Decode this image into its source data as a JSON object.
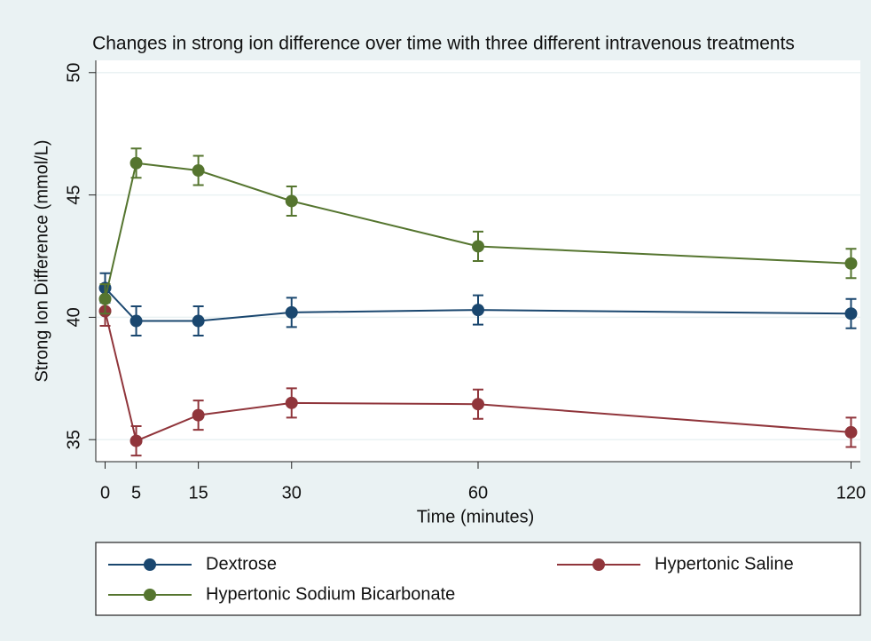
{
  "chart_data": {
    "type": "line",
    "title": "Changes in strong ion difference over time with three different intravenous treatments",
    "x_label": "Time (minutes)",
    "y_label": "Strong Ion Difference (mmol/L)",
    "x": [
      0,
      5,
      15,
      30,
      60,
      120
    ],
    "series": [
      {
        "name": "Dextrose",
        "color": "#1a476f",
        "values": [
          41.2,
          39.85,
          39.85,
          40.2,
          40.3,
          40.15
        ],
        "errors": [
          0.6,
          0.6,
          0.6,
          0.6,
          0.6,
          0.6
        ]
      },
      {
        "name": "Hypertonic Saline",
        "color": "#90353b",
        "values": [
          40.25,
          34.95,
          36.0,
          36.5,
          36.45,
          35.3
        ],
        "errors": [
          0.6,
          0.6,
          0.6,
          0.6,
          0.6,
          0.6
        ]
      },
      {
        "name": "Hypertonic Sodium Bicarbonate",
        "color": "#55752f",
        "values": [
          40.75,
          46.3,
          46.0,
          44.75,
          42.9,
          42.2
        ],
        "errors": [
          0.6,
          0.6,
          0.6,
          0.6,
          0.6,
          0.6
        ]
      }
    ],
    "xlim": [
      -1.5,
      121.5
    ],
    "ylim": [
      34.1,
      50.5
    ],
    "xticks": [
      0,
      5,
      15,
      30,
      60,
      120
    ],
    "yticks": [
      35,
      40,
      45,
      50
    ],
    "grid": true,
    "legend": "bottom"
  }
}
